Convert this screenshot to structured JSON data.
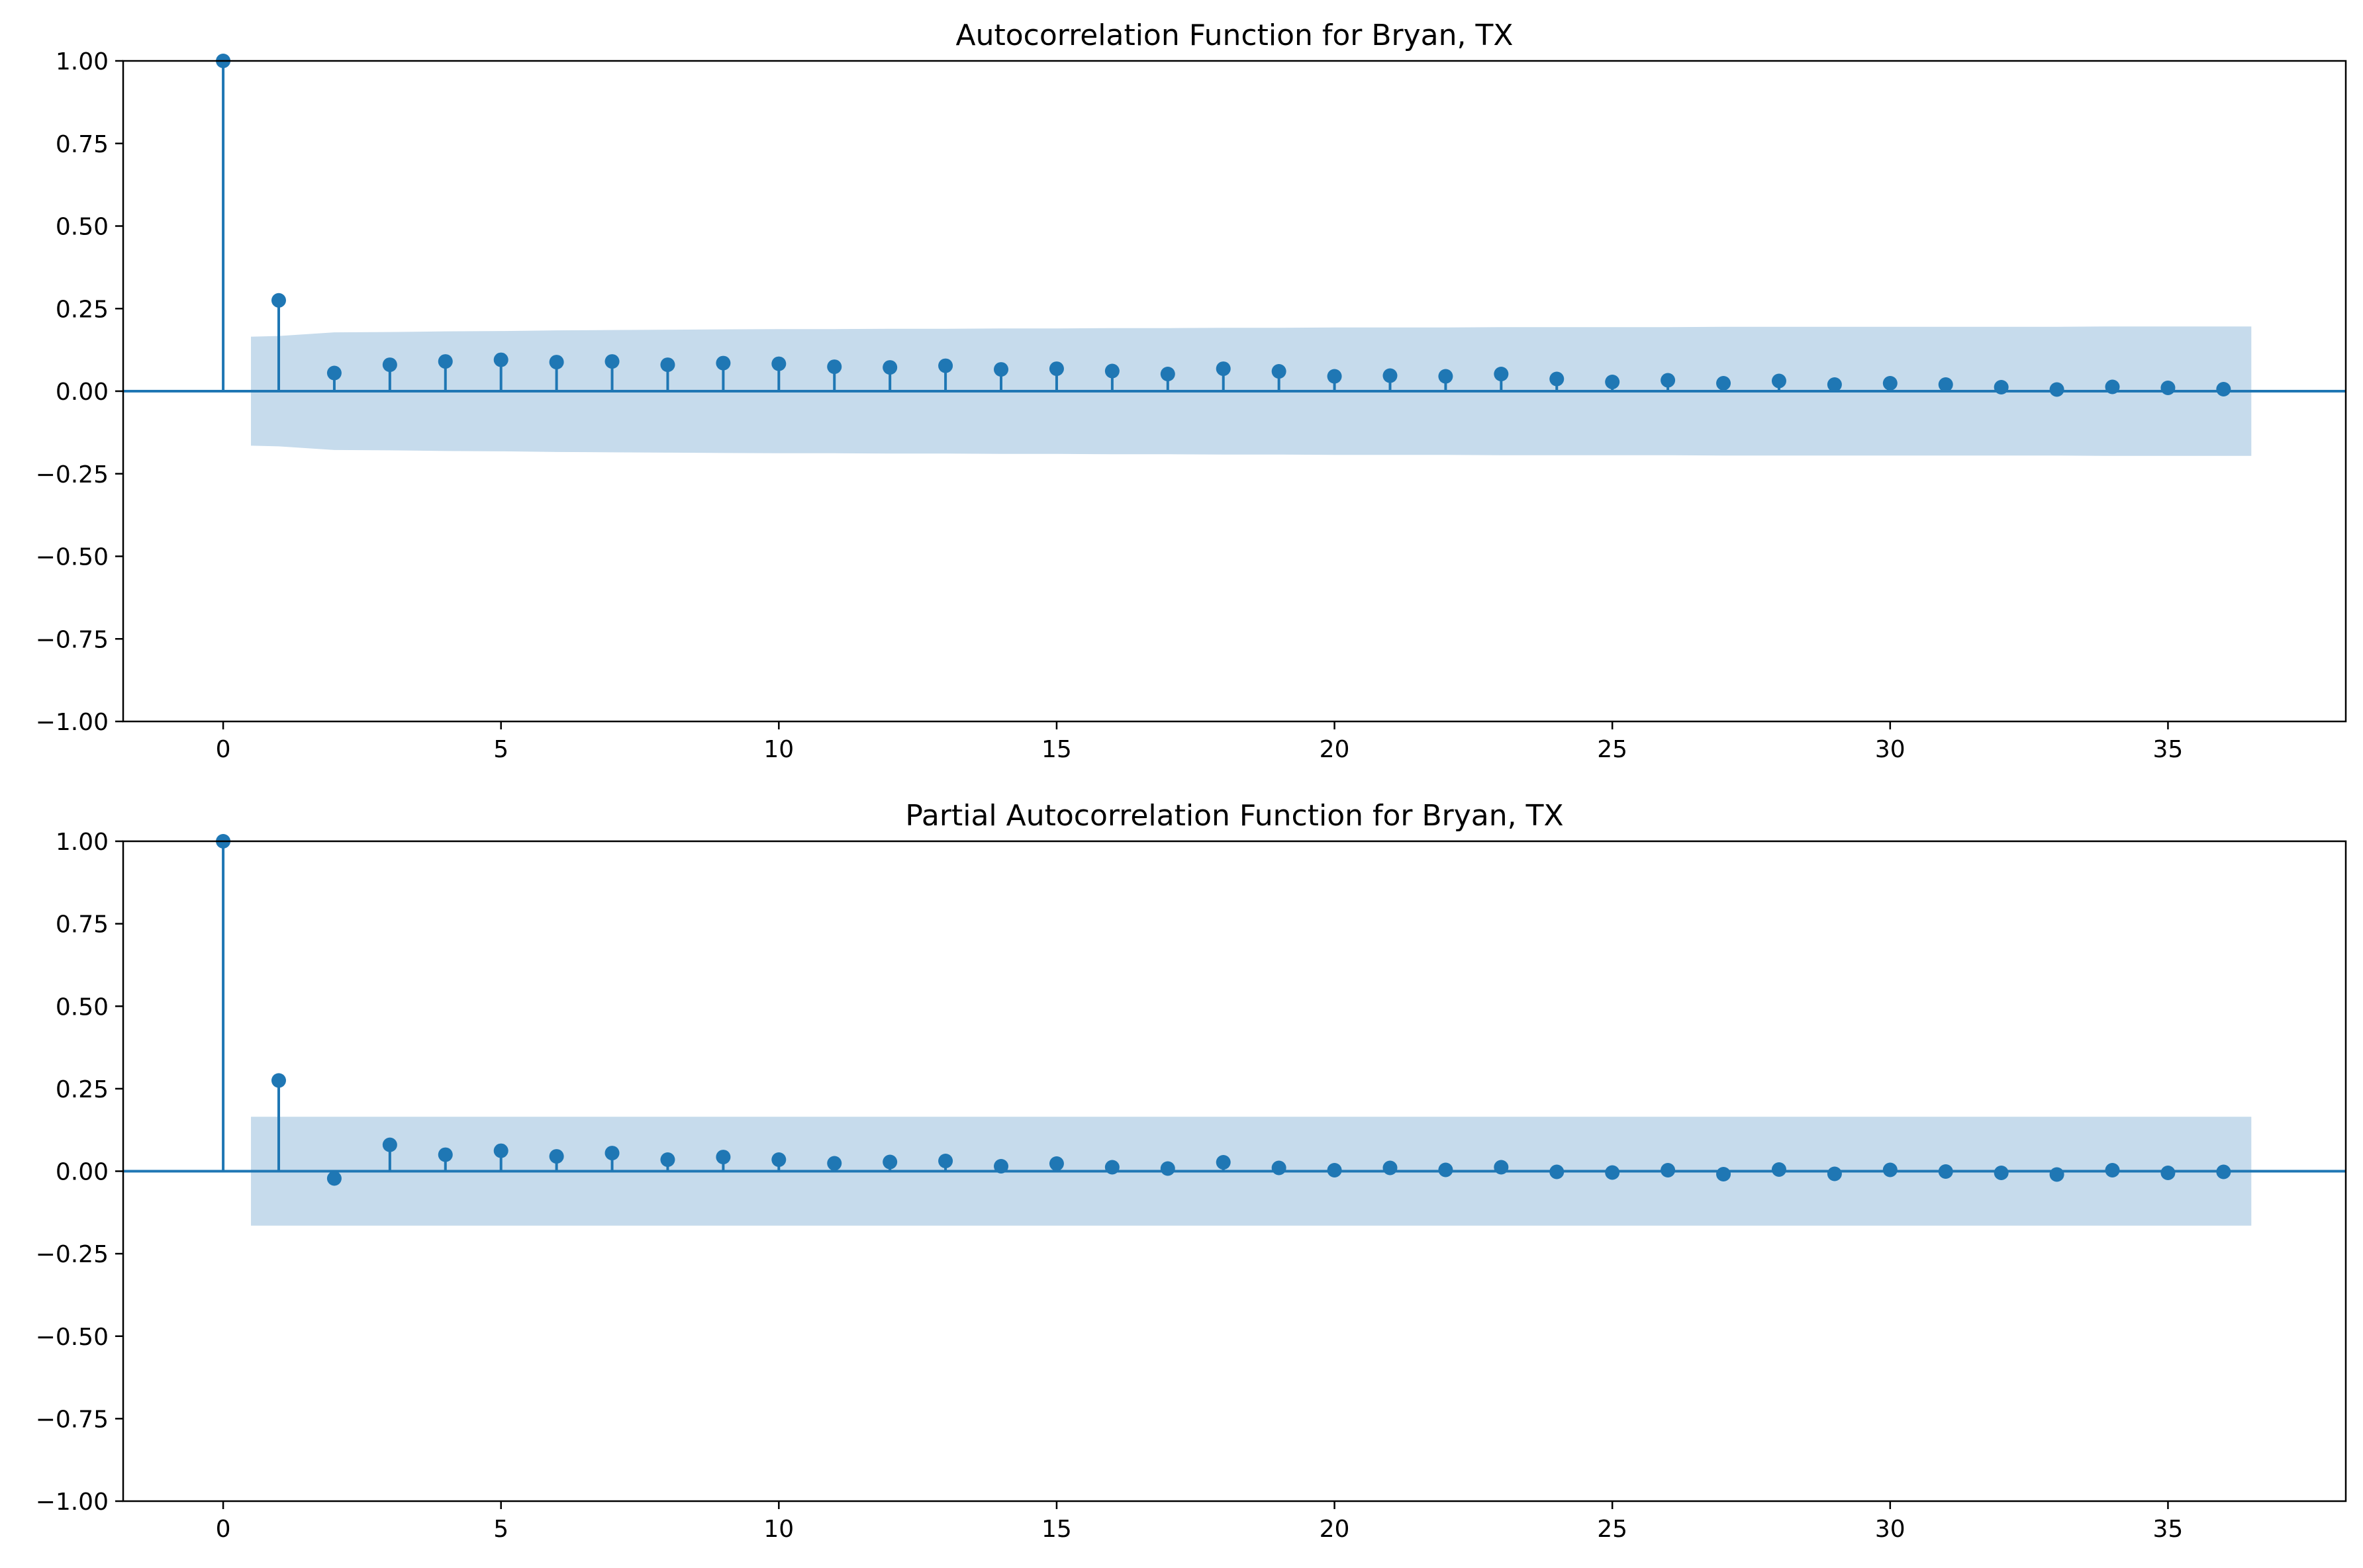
{
  "chart_data": [
    {
      "type": "stem",
      "title": "Autocorrelation Function for Bryan, TX",
      "xlabel": "",
      "ylabel": "",
      "xlim": [
        -1.8,
        38.2
      ],
      "ylim": [
        -1.0,
        1.0
      ],
      "xticks": [
        "0",
        "5",
        "10",
        "15",
        "20",
        "25",
        "30",
        "35"
      ],
      "yticks": [
        "1.00",
        "0.75",
        "0.50",
        "0.25",
        "0.00",
        "−0.25",
        "−0.50",
        "−0.75",
        "−1.00"
      ],
      "grid": false,
      "colors": {
        "marker": "#1f77b4",
        "band": "#c6dbec"
      },
      "lags": [
        0,
        1,
        2,
        3,
        4,
        5,
        6,
        7,
        8,
        9,
        10,
        11,
        12,
        13,
        14,
        15,
        16,
        17,
        18,
        19,
        20,
        21,
        22,
        23,
        24,
        25,
        26,
        27,
        28,
        29,
        30,
        31,
        32,
        33,
        34,
        35,
        36
      ],
      "values": [
        1.0,
        0.275,
        0.055,
        0.08,
        0.09,
        0.095,
        0.088,
        0.09,
        0.08,
        0.085,
        0.083,
        0.074,
        0.072,
        0.077,
        0.066,
        0.068,
        0.061,
        0.052,
        0.068,
        0.06,
        0.045,
        0.047,
        0.045,
        0.052,
        0.037,
        0.028,
        0.033,
        0.024,
        0.031,
        0.02,
        0.024,
        0.02,
        0.012,
        0.005,
        0.013,
        0.01,
        0.006
      ],
      "confidence_band": {
        "lags": [
          0.5,
          1,
          2,
          3,
          4,
          5,
          6,
          7,
          8,
          9,
          10,
          11,
          12,
          13,
          14,
          15,
          16,
          17,
          18,
          19,
          20,
          21,
          22,
          23,
          24,
          25,
          26,
          27,
          28,
          29,
          30,
          31,
          32,
          33,
          34,
          35,
          36,
          36.5
        ],
        "upper": [
          0.165,
          0.167,
          0.178,
          0.179,
          0.181,
          0.182,
          0.184,
          0.185,
          0.186,
          0.187,
          0.188,
          0.188,
          0.189,
          0.189,
          0.19,
          0.19,
          0.191,
          0.191,
          0.192,
          0.192,
          0.193,
          0.193,
          0.193,
          0.194,
          0.194,
          0.194,
          0.194,
          0.195,
          0.195,
          0.195,
          0.195,
          0.195,
          0.195,
          0.195,
          0.196,
          0.196,
          0.196,
          0.196
        ]
      }
    },
    {
      "type": "stem",
      "title": "Partial Autocorrelation Function for Bryan, TX",
      "xlabel": "",
      "ylabel": "",
      "xlim": [
        -1.8,
        38.2
      ],
      "ylim": [
        -1.0,
        1.0
      ],
      "xticks": [
        "0",
        "5",
        "10",
        "15",
        "20",
        "25",
        "30",
        "35"
      ],
      "yticks": [
        "1.00",
        "0.75",
        "0.50",
        "0.25",
        "0.00",
        "−0.25",
        "−0.50",
        "−0.75",
        "−1.00"
      ],
      "grid": false,
      "colors": {
        "marker": "#1f77b4",
        "band": "#c6dbec"
      },
      "lags": [
        0,
        1,
        2,
        3,
        4,
        5,
        6,
        7,
        8,
        9,
        10,
        11,
        12,
        13,
        14,
        15,
        16,
        17,
        18,
        19,
        20,
        21,
        22,
        23,
        24,
        25,
        26,
        27,
        28,
        29,
        30,
        31,
        32,
        33,
        34,
        35,
        36
      ],
      "values": [
        1.0,
        0.275,
        -0.022,
        0.08,
        0.05,
        0.062,
        0.045,
        0.055,
        0.035,
        0.043,
        0.035,
        0.024,
        0.028,
        0.031,
        0.015,
        0.023,
        0.012,
        0.008,
        0.027,
        0.01,
        0.003,
        0.01,
        0.004,
        0.012,
        -0.002,
        -0.004,
        0.003,
        -0.009,
        0.005,
        -0.008,
        0.004,
        -0.001,
        -0.005,
        -0.01,
        0.003,
        -0.005,
        -0.002
      ],
      "confidence_band": {
        "lags": [
          0.5,
          36.5
        ],
        "upper": [
          0.165,
          0.165
        ]
      }
    }
  ]
}
